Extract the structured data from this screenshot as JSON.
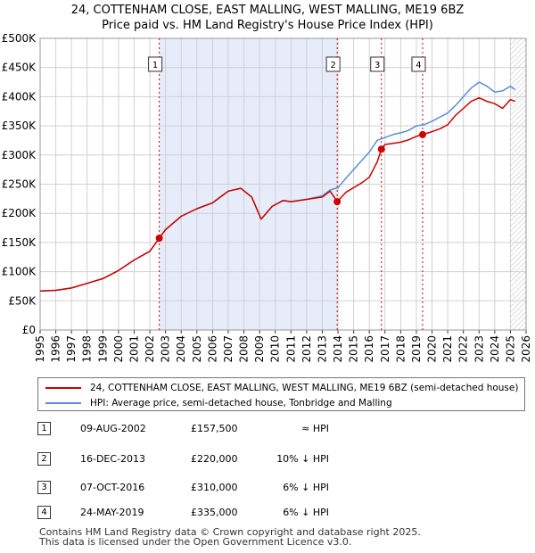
{
  "chart_data": {
    "type": "line",
    "title": "24, COTTENHAM CLOSE, EAST MALLING, WEST MALLING, ME19 6BZ",
    "subtitle": "Price paid vs. HM Land Registry's House Price Index (HPI)",
    "xlim": [
      1995,
      2026
    ],
    "ylim": [
      0,
      500000
    ],
    "x_ticks": [
      "1995",
      "1996",
      "1997",
      "1998",
      "1999",
      "2000",
      "2001",
      "2002",
      "2003",
      "2004",
      "2005",
      "2006",
      "2007",
      "2008",
      "2009",
      "2010",
      "2011",
      "2012",
      "2013",
      "2014",
      "2015",
      "2016",
      "2017",
      "2018",
      "2019",
      "2020",
      "2021",
      "2022",
      "2023",
      "2024",
      "2025",
      "2026"
    ],
    "y_ticks": [
      {
        "value": 0,
        "label": "£0"
      },
      {
        "value": 50000,
        "label": "£50K"
      },
      {
        "value": 100000,
        "label": "£100K"
      },
      {
        "value": 150000,
        "label": "£150K"
      },
      {
        "value": 200000,
        "label": "£200K"
      },
      {
        "value": 250000,
        "label": "£250K"
      },
      {
        "value": 300000,
        "label": "£300K"
      },
      {
        "value": 350000,
        "label": "£350K"
      },
      {
        "value": 400000,
        "label": "£400K"
      },
      {
        "value": 450000,
        "label": "£450K"
      },
      {
        "value": 500000,
        "label": "£500K"
      }
    ],
    "grid": true,
    "shaded_ownership": [
      2002.6,
      2013.95
    ],
    "hatched_future_from": 2025.0,
    "series": [
      {
        "name": "24, COTTENHAM CLOSE, EAST MALLING, WEST MALLING, ME19 6BZ (semi-detached house)",
        "color": "#cc0000",
        "points": [
          [
            1995.0,
            67000
          ],
          [
            1996.0,
            68000
          ],
          [
            1997.0,
            72000
          ],
          [
            1998.0,
            80000
          ],
          [
            1999.0,
            88000
          ],
          [
            2000.0,
            102000
          ],
          [
            2001.0,
            120000
          ],
          [
            2002.0,
            135000
          ],
          [
            2002.6,
            157500
          ],
          [
            2003.0,
            172000
          ],
          [
            2004.0,
            195000
          ],
          [
            2005.0,
            208000
          ],
          [
            2006.0,
            218000
          ],
          [
            2007.0,
            238000
          ],
          [
            2007.8,
            243000
          ],
          [
            2008.5,
            228000
          ],
          [
            2009.1,
            190000
          ],
          [
            2009.8,
            212000
          ],
          [
            2010.5,
            222000
          ],
          [
            2011.0,
            220000
          ],
          [
            2012.0,
            224000
          ],
          [
            2013.0,
            228000
          ],
          [
            2013.5,
            238000
          ],
          [
            2013.95,
            220000
          ],
          [
            2014.5,
            236000
          ],
          [
            2015.0,
            244000
          ],
          [
            2015.5,
            252000
          ],
          [
            2016.0,
            262000
          ],
          [
            2016.5,
            288000
          ],
          [
            2016.77,
            310000
          ],
          [
            2017.0,
            318000
          ],
          [
            2017.5,
            320000
          ],
          [
            2018.0,
            322000
          ],
          [
            2018.5,
            326000
          ],
          [
            2019.0,
            332000
          ],
          [
            2019.4,
            335000
          ],
          [
            2020.0,
            340000
          ],
          [
            2020.5,
            345000
          ],
          [
            2021.0,
            352000
          ],
          [
            2021.5,
            368000
          ],
          [
            2022.0,
            380000
          ],
          [
            2022.5,
            392000
          ],
          [
            2023.0,
            398000
          ],
          [
            2023.5,
            392000
          ],
          [
            2024.0,
            388000
          ],
          [
            2024.5,
            380000
          ],
          [
            2025.0,
            395000
          ],
          [
            2025.3,
            392000
          ]
        ]
      },
      {
        "name": "HPI: Average price, semi-detached house, Tonbridge and Malling",
        "color": "#5b8fd6",
        "points": [
          [
            1995.0,
            67000
          ],
          [
            1996.0,
            68000
          ],
          [
            1997.0,
            72000
          ],
          [
            1998.0,
            80000
          ],
          [
            1999.0,
            88000
          ],
          [
            2000.0,
            102000
          ],
          [
            2001.0,
            120000
          ],
          [
            2002.0,
            135000
          ],
          [
            2002.6,
            157500
          ],
          [
            2003.0,
            172000
          ],
          [
            2004.0,
            195000
          ],
          [
            2005.0,
            208000
          ],
          [
            2006.0,
            218000
          ],
          [
            2007.0,
            238000
          ],
          [
            2007.8,
            243000
          ],
          [
            2008.5,
            228000
          ],
          [
            2009.1,
            190000
          ],
          [
            2009.8,
            212000
          ],
          [
            2010.5,
            222000
          ],
          [
            2011.0,
            220000
          ],
          [
            2012.0,
            224000
          ],
          [
            2013.0,
            230000
          ],
          [
            2013.5,
            240000
          ],
          [
            2014.0,
            244000
          ],
          [
            2014.5,
            260000
          ],
          [
            2015.0,
            275000
          ],
          [
            2015.5,
            290000
          ],
          [
            2016.0,
            305000
          ],
          [
            2016.5,
            325000
          ],
          [
            2017.0,
            330000
          ],
          [
            2017.5,
            335000
          ],
          [
            2018.0,
            338000
          ],
          [
            2018.5,
            342000
          ],
          [
            2019.0,
            350000
          ],
          [
            2019.5,
            352000
          ],
          [
            2020.0,
            358000
          ],
          [
            2020.5,
            365000
          ],
          [
            2021.0,
            372000
          ],
          [
            2021.5,
            385000
          ],
          [
            2022.0,
            400000
          ],
          [
            2022.5,
            415000
          ],
          [
            2023.0,
            425000
          ],
          [
            2023.5,
            418000
          ],
          [
            2024.0,
            408000
          ],
          [
            2024.5,
            410000
          ],
          [
            2025.0,
            418000
          ],
          [
            2025.3,
            412000
          ]
        ]
      }
    ],
    "transactions": [
      {
        "n": "1",
        "x": 2002.6,
        "price": 157500,
        "date": "09-AUG-2002",
        "price_label": "£157,500",
        "hpi": "≈ HPI"
      },
      {
        "n": "2",
        "x": 2013.95,
        "price": 220000,
        "date": "16-DEC-2013",
        "price_label": "£220,000",
        "hpi": "10% ↓ HPI"
      },
      {
        "n": "3",
        "x": 2016.77,
        "price": 310000,
        "date": "07-OCT-2016",
        "price_label": "£310,000",
        "hpi": "6% ↓ HPI"
      },
      {
        "n": "4",
        "x": 2019.4,
        "price": 335000,
        "date": "24-MAY-2019",
        "price_label": "£335,000",
        "hpi": "6% ↓ HPI"
      }
    ]
  },
  "legend": {
    "red_label": "24, COTTENHAM CLOSE, EAST MALLING, WEST MALLING, ME19 6BZ (semi-detached house)",
    "blue_label": "HPI: Average price, semi-detached house, Tonbridge and Malling"
  },
  "colors": {
    "red": "#cc0000",
    "blue": "#5b8fd6",
    "shade": "#e6ecfa",
    "grid": "#d0d0d0"
  },
  "footer": {
    "line1": "Contains HM Land Registry data © Crown copyright and database right 2025.",
    "line2": "This data is licensed under the Open Government Licence v3.0."
  }
}
